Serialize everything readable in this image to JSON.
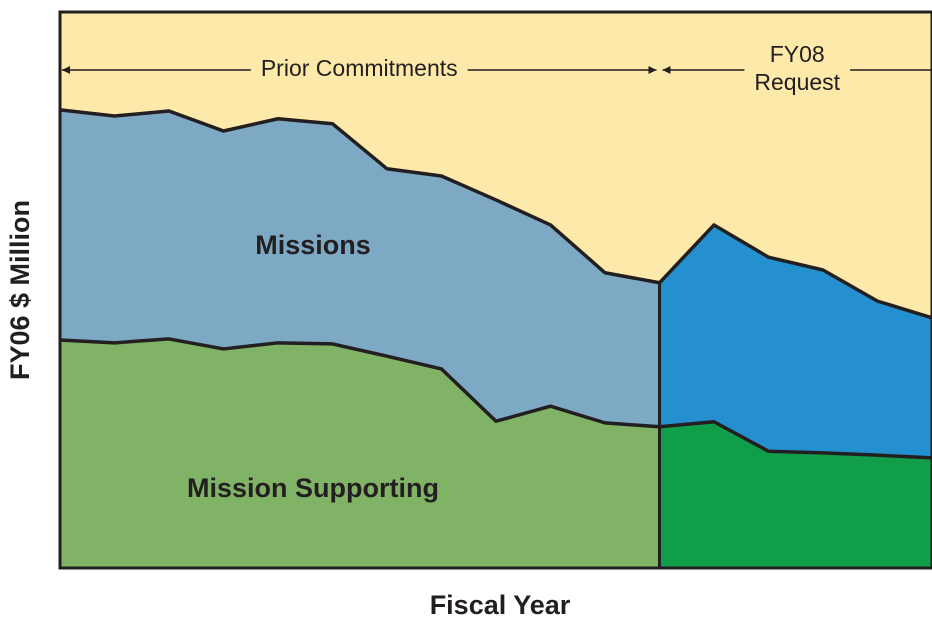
{
  "chart_data": {
    "type": "stacked_area",
    "x_label": "Fiscal Year",
    "y_label": "FY06 $ Million",
    "categories": [
      null,
      null,
      null,
      null,
      null,
      null,
      null,
      null,
      null,
      null,
      null,
      null,
      null,
      null,
      null,
      null,
      null
    ],
    "ylim": [
      0,
      100
    ],
    "background_color": "#fde9a9",
    "regions": [
      {
        "lines": [
          "Prior Commitments"
        ],
        "start": 0,
        "end": 11
      },
      {
        "lines": [
          "FY08",
          "Request"
        ],
        "start": 11,
        "end": 16
      }
    ],
    "series": [
      {
        "name": "Mission Supporting",
        "colors": [
          "#80b366",
          "#109e4a"
        ],
        "values": [
          41.0,
          40.5,
          41.2,
          39.4,
          40.5,
          40.3,
          38.1,
          35.8,
          26.4,
          29.1,
          26.1,
          25.4,
          26.3,
          21.0,
          20.7,
          20.3,
          19.8
        ]
      },
      {
        "name": "Missions",
        "colors": [
          "#7ea9c4",
          "#2590d0"
        ],
        "values": [
          41.4,
          40.8,
          41.0,
          39.2,
          40.3,
          39.6,
          33.7,
          34.7,
          39.8,
          32.6,
          27.0,
          25.9,
          35.4,
          34.9,
          32.9,
          27.7,
          25.2
        ]
      }
    ]
  }
}
